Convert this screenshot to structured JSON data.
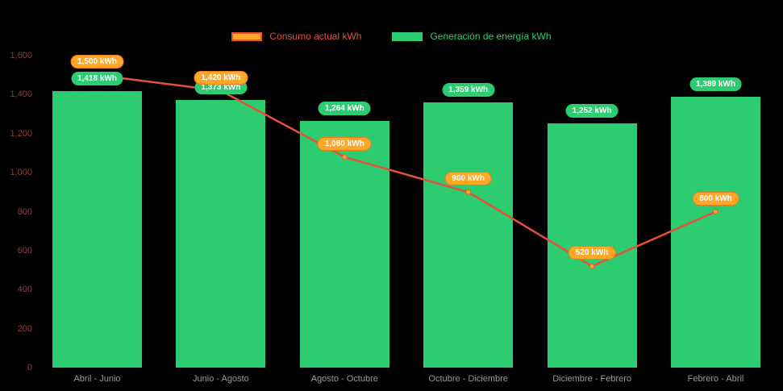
{
  "colors": {
    "background": "#000000",
    "bar_green": "#2ecc71",
    "line_red": "#e8503a",
    "point_orange": "#ffa726",
    "orange_pill_bg": "#ffa726",
    "orange_pill_border": "#ef7d1a",
    "y_tick_text": "#8a4040",
    "x_tick_text": "#9a9a9a",
    "pill_text": "#ffffff"
  },
  "chart_data": {
    "type": "bar",
    "note": "grouped bar chart with overlaid line series",
    "categories": [
      "Abril - Junio",
      "Junio - Agosto",
      "Agosto - Octubre",
      "Octubre - Diciembre",
      "Diciembre - Febrero",
      "Febrero - Abril"
    ],
    "series": [
      {
        "name": "Generación de energía kWh",
        "type": "bar",
        "values": [
          1418,
          1373,
          1264,
          1359,
          1252,
          1389
        ],
        "labels": [
          "1,418 kWh",
          "1,373 kWh",
          "1,264 kWh",
          "1,359 kWh",
          "1,252 kWh",
          "1,389 kWh"
        ]
      },
      {
        "name": "Consumo actual kWh",
        "type": "line",
        "values": [
          1500,
          1420,
          1080,
          900,
          520,
          800
        ],
        "labels": [
          "1,500 kWh",
          "1,420 kWh",
          "1,080 kWh",
          "900 kWh",
          "520 kWh",
          "800 kWh"
        ]
      }
    ],
    "title": "",
    "xlabel": "",
    "ylabel": "",
    "ylim": [
      0,
      1600
    ],
    "yticks": [
      0,
      200,
      400,
      600,
      800,
      1000,
      1200,
      1400,
      1600
    ],
    "ytick_labels": [
      "0",
      "200",
      "400",
      "600",
      "800",
      "1,000",
      "1,200",
      "1,400",
      "1,600"
    ],
    "grid": false,
    "legend_position": "top"
  }
}
